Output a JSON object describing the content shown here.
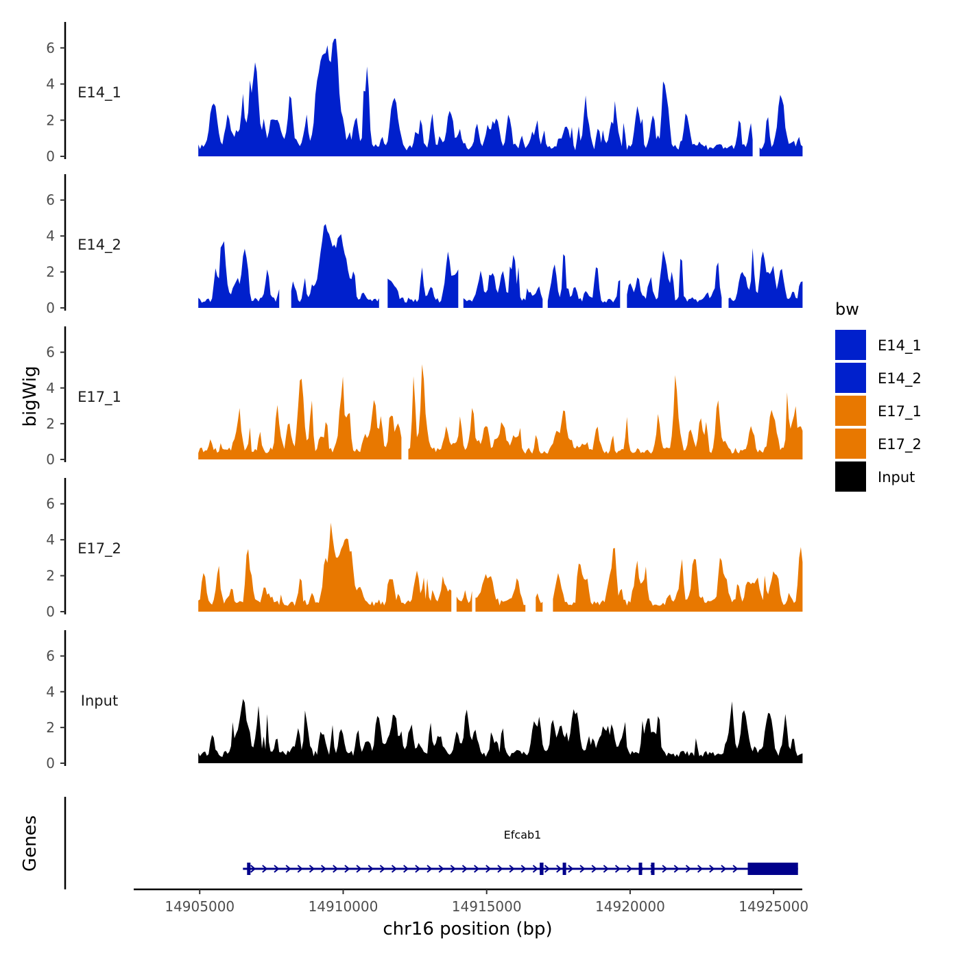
{
  "chart_data": {
    "type": "area",
    "chromosome": "chr16",
    "xlabel": "chr16 position (bp)",
    "ylabel": "bigWig",
    "genes_label": "Genes",
    "xlim": [
      14902700,
      14926000
    ],
    "x_ticks": [
      14905000,
      14910000,
      14915000,
      14920000,
      14925000
    ],
    "x_tick_labels": [
      "14905000",
      "14910000",
      "14915000",
      "14920000",
      "14925000"
    ],
    "ylim": [
      0,
      7
    ],
    "y_ticks": [
      0,
      2,
      4,
      6
    ],
    "y_tick_labels": [
      "0",
      "2",
      "4",
      "6"
    ],
    "track_start": 14904950,
    "track_end": 14926050,
    "legend": {
      "title": "bw",
      "position": "right",
      "entries": [
        {
          "label": "E14_1",
          "color": "#0020cc"
        },
        {
          "label": "E14_2",
          "color": "#0020cc"
        },
        {
          "label": "E17_1",
          "color": "#e87800"
        },
        {
          "label": "E17_2",
          "color": "#e87800"
        },
        {
          "label": "Input",
          "color": "#000000"
        }
      ]
    },
    "series": [
      {
        "name": "E14_1",
        "label": "E14_1",
        "color": "#0020cc",
        "seed": 11,
        "base": 0.9,
        "amp": 1.6,
        "peaks": [
          [
            14907700,
            1.6,
            180
          ],
          [
            14909300,
            5.2,
            260
          ],
          [
            14909700,
            5.5,
            160
          ],
          [
            14915350,
            1.8,
            120
          ],
          [
            14921200,
            2.3,
            120
          ],
          [
            14925300,
            2.2,
            140
          ],
          [
            14907000,
            1.3,
            140
          ]
        ],
        "gaps": [
          [
            14924300,
            14924450
          ]
        ]
      },
      {
        "name": "E14_2",
        "label": "E14_2",
        "color": "#0020cc",
        "seed": 23,
        "base": 0.8,
        "amp": 1.5,
        "peaks": [
          [
            14909400,
            3.8,
            300
          ],
          [
            14909900,
            2.8,
            260
          ],
          [
            14915550,
            1.7,
            120
          ],
          [
            14917350,
            1.9,
            120
          ],
          [
            14921150,
            2.5,
            120
          ],
          [
            14908000,
            1.4,
            160
          ]
        ],
        "gaps": [
          [
            14907800,
            14908150
          ],
          [
            14911300,
            14911500
          ],
          [
            14914040,
            14914150
          ],
          [
            14917000,
            14917100
          ],
          [
            14919700,
            14919850
          ],
          [
            14923250,
            14923400
          ]
        ]
      },
      {
        "name": "E17_1",
        "label": "E17_1",
        "color": "#e87800",
        "seed": 37,
        "base": 0.9,
        "amp": 1.5,
        "peaks": [
          [
            14908500,
            3.1,
            120
          ],
          [
            14912800,
            1.5,
            160
          ],
          [
            14915550,
            1.6,
            160
          ],
          [
            14917700,
            2.2,
            120
          ],
          [
            14925700,
            1.8,
            140
          ]
        ],
        "gaps": [
          [
            14912050,
            14912250
          ]
        ]
      },
      {
        "name": "E17_2",
        "label": "E17_2",
        "color": "#e87800",
        "seed": 53,
        "base": 0.9,
        "amp": 1.4,
        "peaks": [
          [
            14909700,
            2.2,
            200
          ],
          [
            14910200,
            2.4,
            180
          ],
          [
            14915000,
            1.5,
            220
          ],
          [
            14917500,
            1.5,
            140
          ],
          [
            14925000,
            1.4,
            160
          ]
        ],
        "gaps": [
          [
            14913800,
            14913900
          ],
          [
            14914500,
            14914600
          ],
          [
            14916400,
            14916700
          ],
          [
            14917000,
            14917250
          ]
        ]
      },
      {
        "name": "Input",
        "label": "Input",
        "color": "#000000",
        "seed": 71,
        "base": 1.0,
        "amp": 1.4,
        "peaks": [
          [
            14916700,
            1.5,
            160
          ],
          [
            14918000,
            2.2,
            100
          ],
          [
            14913350,
            1.0,
            160
          ],
          [
            14919100,
            0.8,
            140
          ]
        ],
        "gaps": []
      }
    ],
    "gene": {
      "name": "Efcab1",
      "start": 14906650,
      "end": 14925850,
      "color": "#00008b",
      "exons": [
        [
          14906650,
          14906750
        ],
        [
          14916850,
          14916980
        ],
        [
          14917650,
          14917720
        ],
        [
          14920300,
          14920400
        ],
        [
          14920730,
          14920800
        ],
        [
          14924100,
          14925850
        ]
      ]
    }
  }
}
